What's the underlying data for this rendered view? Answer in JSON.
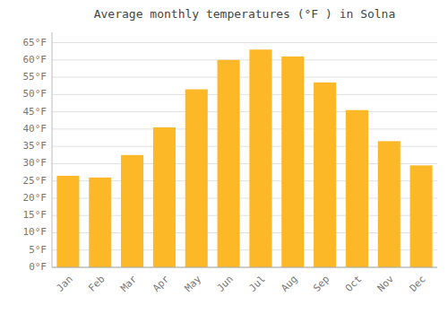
{
  "chart_data": {
    "type": "bar",
    "title": "Average monthly temperatures (°F ) in Solna",
    "categories": [
      "Jan",
      "Feb",
      "Mar",
      "Apr",
      "May",
      "Jun",
      "Jul",
      "Aug",
      "Sep",
      "Oct",
      "Nov",
      "Dec"
    ],
    "values": [
      26.5,
      26.0,
      32.5,
      40.5,
      51.5,
      60.0,
      63.0,
      61.0,
      53.5,
      45.5,
      36.5,
      29.5
    ],
    "color": "#FDB827",
    "ylim": [
      0,
      68
    ],
    "yticks": [
      {
        "value": 0,
        "label": "0°F"
      },
      {
        "value": 5,
        "label": "5°F"
      },
      {
        "value": 10,
        "label": "10°F"
      },
      {
        "value": 15,
        "label": "15°F"
      },
      {
        "value": 20,
        "label": "20°F"
      },
      {
        "value": 25,
        "label": "25°F"
      },
      {
        "value": 30,
        "label": "30°F"
      },
      {
        "value": 35,
        "label": "35°F"
      },
      {
        "value": 40,
        "label": "40°F"
      },
      {
        "value": 45,
        "label": "45°F"
      },
      {
        "value": 50,
        "label": "50°F"
      },
      {
        "value": 55,
        "label": "55°F"
      },
      {
        "value": 60,
        "label": "60°F"
      },
      {
        "value": 65,
        "label": "65°F"
      }
    ],
    "grid": true
  }
}
